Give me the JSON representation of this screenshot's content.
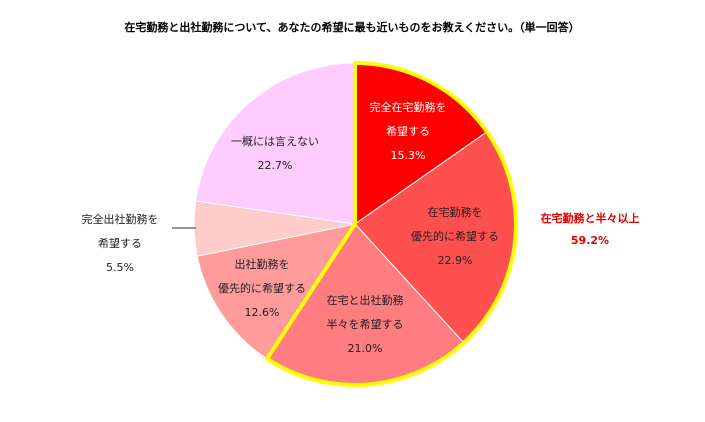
{
  "chart_data": {
    "type": "pie",
    "title": "在宅勤務と出社勤務について、あなたの希望に最も近いものをお教えください。（単一回答）",
    "categories": [
      [
        "完全在宅勤務を",
        "希望する"
      ],
      [
        "在宅勤務を",
        "優先的に希望する"
      ],
      [
        "在宅と出社勤務",
        "半々を希望する"
      ],
      [
        "出社勤務を",
        "優先的に希望する"
      ],
      [
        "完全出社勤務を",
        "希望する"
      ],
      [
        "一概には言えない"
      ]
    ],
    "values": [
      15.3,
      22.9,
      21.0,
      12.6,
      5.5,
      22.7
    ],
    "value_labels": [
      "15.3%",
      "22.9%",
      "21.0%",
      "12.6%",
      "5.5%",
      "22.7%"
    ],
    "colors": [
      "#ff0000",
      "#ff5050",
      "#ff7c80",
      "#ff9b9b",
      "#ffcccc",
      "#ffccff"
    ],
    "label_colors": [
      "#ffffff",
      "#222222",
      "#222222",
      "#222222",
      "#222222",
      "#222222"
    ],
    "highlight": {
      "label": "在宅勤務と半々以上",
      "value": 59.2,
      "value_label": "59.2%",
      "color": "#e00000",
      "outline": "#ffff00",
      "slices": [
        0,
        1,
        2
      ]
    }
  }
}
